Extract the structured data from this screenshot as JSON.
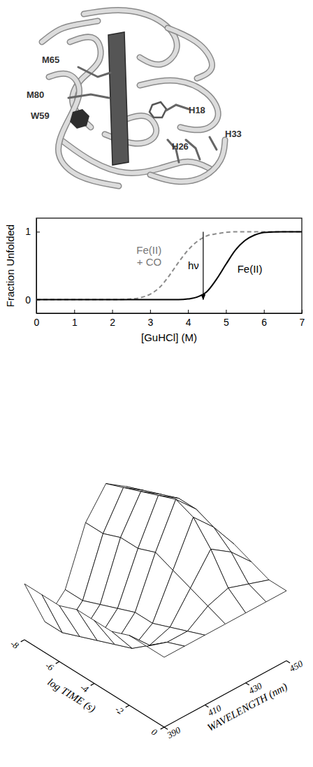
{
  "structure": {
    "labels": [
      "M65",
      "M80",
      "W59",
      "H18",
      "H33",
      "H26"
    ]
  },
  "chart_data": [
    {
      "type": "line",
      "xlabel": "[GuHCl] (M)",
      "ylabel": "Fraction Unfolded",
      "x": [
        0,
        1,
        2,
        2.5,
        2.75,
        3,
        3.25,
        3.5,
        3.75,
        4,
        4.25,
        4.5,
        4.75,
        5,
        5.25,
        5.5,
        5.75,
        6,
        6.5,
        7
      ],
      "series": [
        {
          "name": "Fe(II) + CO",
          "color": "#8c8c8c",
          "line_style": "dashed",
          "values": [
            0,
            0,
            0,
            0.01,
            0.03,
            0.08,
            0.18,
            0.35,
            0.55,
            0.73,
            0.86,
            0.94,
            0.97,
            0.99,
            1,
            1,
            1,
            1,
            1,
            1
          ]
        },
        {
          "name": "Fe(II)",
          "color": "#000000",
          "line_style": "solid",
          "values": [
            0,
            0,
            0,
            0,
            0,
            0,
            0,
            0,
            0,
            0.01,
            0.04,
            0.12,
            0.3,
            0.52,
            0.73,
            0.87,
            0.95,
            0.99,
            1,
            1
          ]
        }
      ],
      "xlim": [
        0,
        7
      ],
      "xticks": [
        0,
        1,
        2,
        3,
        4,
        5,
        6,
        7
      ],
      "ylim": [
        -0.2,
        1.2
      ],
      "yticks": [
        0,
        1
      ],
      "annotations": [
        {
          "text": "hν",
          "x": 4.4,
          "y": [
            0,
            1
          ]
        }
      ]
    },
    {
      "type": "surface",
      "xlabel": "log TIME (s)",
      "ylabel": "WAVELENGTH (nm)",
      "x": [
        -8,
        -7,
        -6,
        -5,
        -4,
        -3,
        -2,
        -1,
        0
      ],
      "y": [
        390,
        400,
        410,
        420,
        430,
        440,
        450
      ],
      "z": [
        [
          -0.2,
          -0.9,
          -0.6,
          0.2,
          0.6,
          0.4,
          0.1
        ],
        [
          -0.2,
          -0.9,
          -0.6,
          0.2,
          0.7,
          0.5,
          0.1
        ],
        [
          -0.2,
          -0.8,
          -0.5,
          0.3,
          0.8,
          0.6,
          0.2
        ],
        [
          -0.1,
          -0.7,
          -0.4,
          0.3,
          0.9,
          0.7,
          0.2
        ],
        [
          -0.1,
          -0.6,
          -0.3,
          0.4,
          1.0,
          0.7,
          0.2
        ],
        [
          -0.1,
          -0.5,
          -0.3,
          0.3,
          0.9,
          0.6,
          0.2
        ],
        [
          0,
          -0.3,
          -0.2,
          0.2,
          0.6,
          0.4,
          0.1
        ],
        [
          0,
          -0.1,
          -0.1,
          0.1,
          0.2,
          0.1,
          0
        ],
        [
          0,
          0,
          0,
          0,
          0,
          0,
          0
        ]
      ],
      "xlim": [
        -8,
        0
      ],
      "xticks": [
        -8,
        -6,
        -4,
        -2,
        0
      ],
      "ylim": [
        390,
        450
      ],
      "yticks": [
        390,
        410,
        430,
        450
      ],
      "zlim": [
        -1,
        1.2
      ]
    }
  ]
}
